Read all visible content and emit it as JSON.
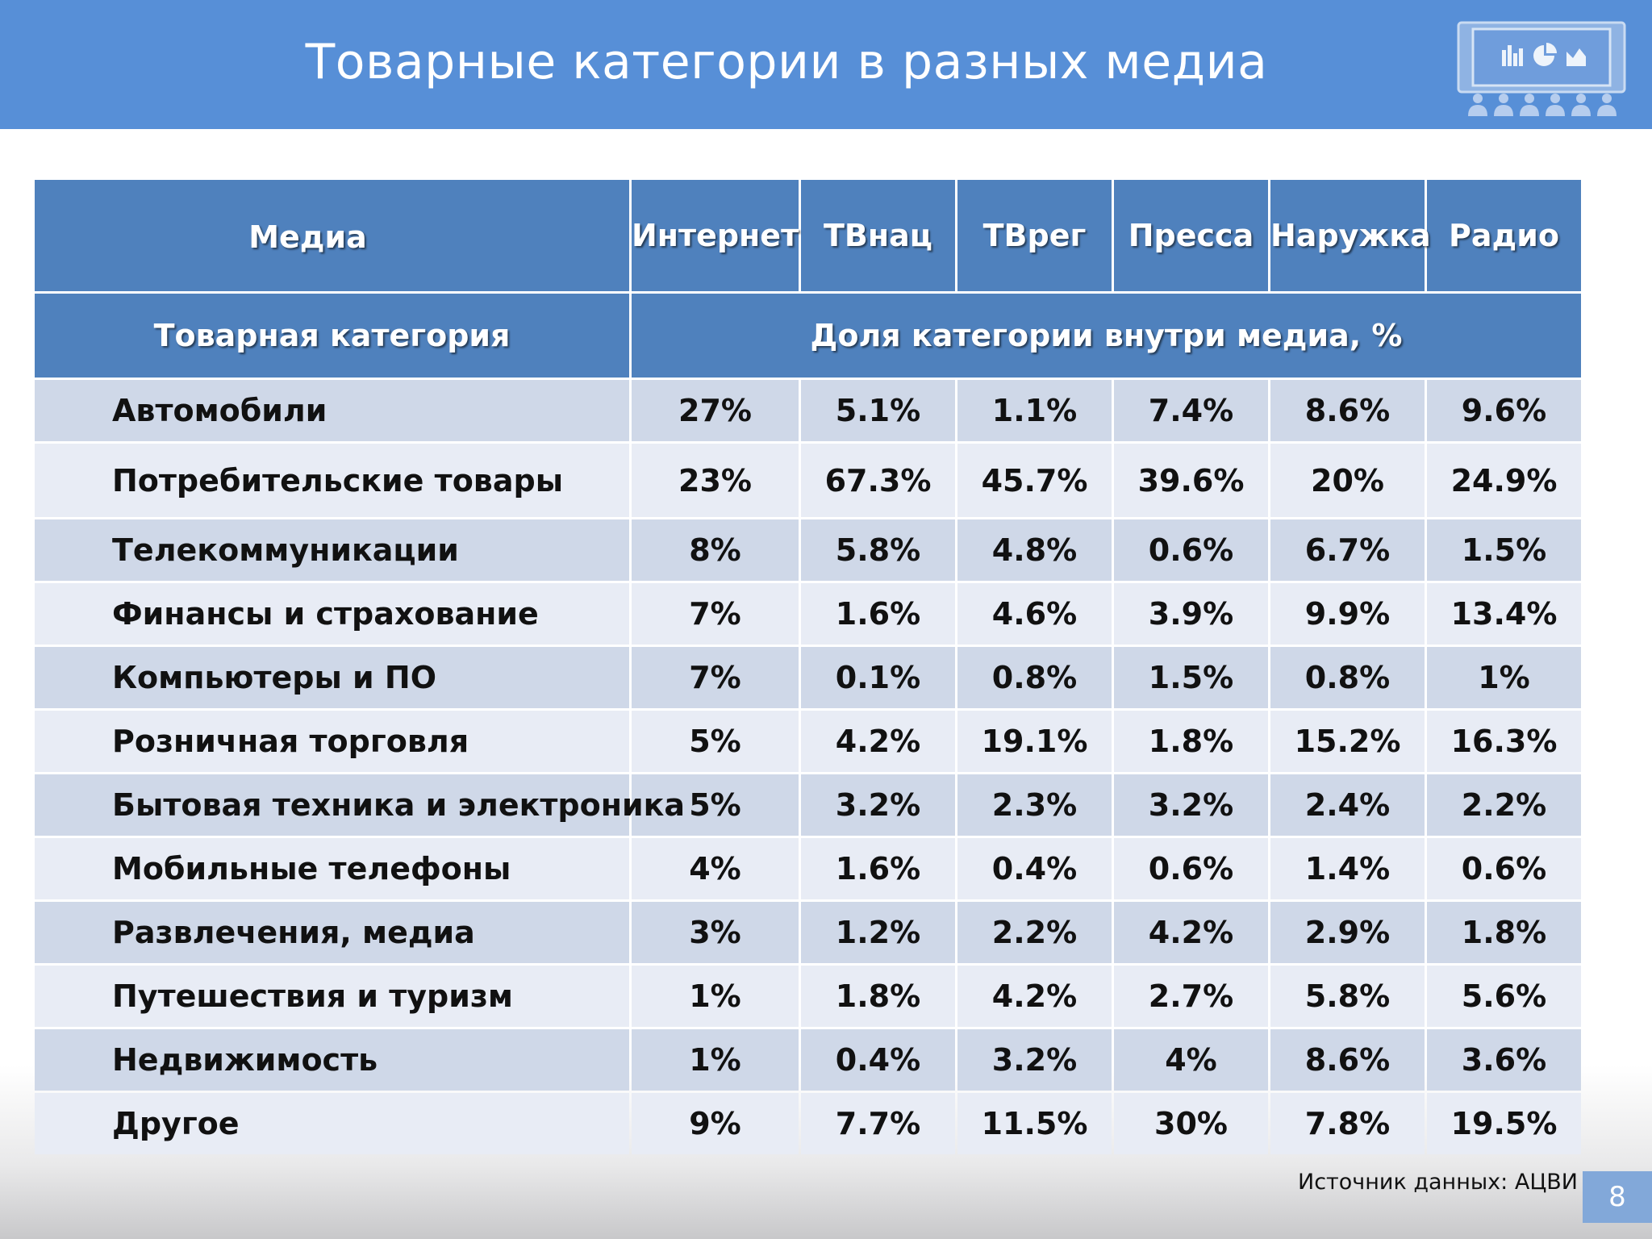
{
  "slide": {
    "title": "Товарные категории в разных медиа",
    "source": "Источник данных: АЦВИ",
    "page_number": "8",
    "logo_icon": "presentation-audience-icon"
  },
  "colors": {
    "header_bg": "#578fd7",
    "table_header": "#4f81bd",
    "row_dark": "#cfd8e8",
    "row_light": "#e8ecf5"
  },
  "table": {
    "media_label": "Медиа",
    "category_label": "Товарная категория",
    "share_label": "Доля категории внутри медиа, %",
    "columns": [
      "Интернет",
      "ТВнац",
      "ТВрег",
      "Пресса",
      "Наружка",
      "Радио"
    ],
    "rows": [
      {
        "category": "Автомобили",
        "values": [
          "27%",
          "5.1%",
          "1.1%",
          "7.4%",
          "8.6%",
          "9.6%"
        ]
      },
      {
        "category": "Потребительские товары",
        "values": [
          "23%",
          "67.3%",
          "45.7%",
          "39.6%",
          "20%",
          "24.9%"
        ]
      },
      {
        "category": "Телекоммуникации",
        "values": [
          "8%",
          "5.8%",
          "4.8%",
          "0.6%",
          "6.7%",
          "1.5%"
        ]
      },
      {
        "category": "Финансы и страхование",
        "values": [
          "7%",
          "1.6%",
          "4.6%",
          "3.9%",
          "9.9%",
          "13.4%"
        ]
      },
      {
        "category": "Компьютеры и ПО",
        "values": [
          "7%",
          "0.1%",
          "0.8%",
          "1.5%",
          "0.8%",
          "1%"
        ]
      },
      {
        "category": "Розничная торговля",
        "values": [
          "5%",
          "4.2%",
          "19.1%",
          "1.8%",
          "15.2%",
          "16.3%"
        ]
      },
      {
        "category": "Бытовая техника и электроника",
        "values": [
          "5%",
          "3.2%",
          "2.3%",
          "3.2%",
          "2.4%",
          "2.2%"
        ]
      },
      {
        "category": "Мобильные телефоны",
        "values": [
          "4%",
          "1.6%",
          "0.4%",
          "0.6%",
          "1.4%",
          "0.6%"
        ]
      },
      {
        "category": "Развлечения, медиа",
        "values": [
          "3%",
          "1.2%",
          "2.2%",
          "4.2%",
          "2.9%",
          "1.8%"
        ]
      },
      {
        "category": "Путешествия и туризм",
        "values": [
          "1%",
          "1.8%",
          "4.2%",
          "2.7%",
          "5.8%",
          "5.6%"
        ]
      },
      {
        "category": "Недвижимость",
        "values": [
          "1%",
          "0.4%",
          "3.2%",
          "4%",
          "8.6%",
          "3.6%"
        ]
      },
      {
        "category": "Другое",
        "values": [
          "9%",
          "7.7%",
          "11.5%",
          "30%",
          "7.8%",
          "19.5%"
        ]
      }
    ]
  }
}
